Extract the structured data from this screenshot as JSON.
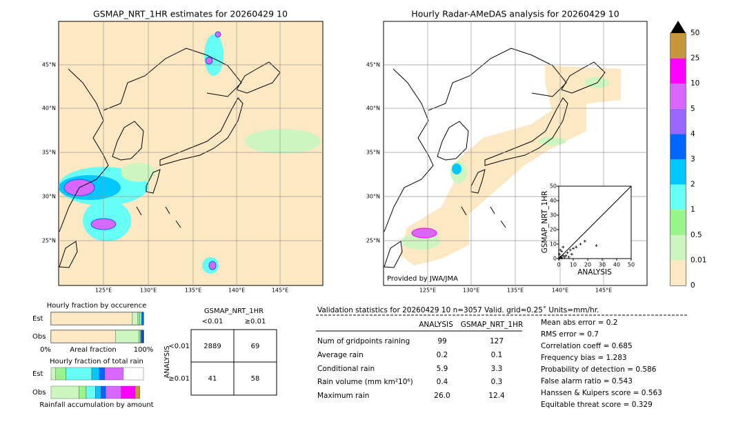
{
  "left_map": {
    "title": "GSMAP_NRT_1HR estimates for 20260429 10",
    "lat_labels": [
      "45°N",
      "40°N",
      "35°N",
      "30°N",
      "25°N"
    ],
    "lon_labels": [
      "125°E",
      "130°E",
      "135°E",
      "140°E",
      "145°E"
    ]
  },
  "right_map": {
    "title": "Hourly Radar-AMeDAS analysis for 20260429 10",
    "lat_labels": [
      "45°N",
      "40°N",
      "35°N",
      "30°N",
      "25°N"
    ],
    "lon_labels": [
      "125°E",
      "130°E",
      "135°E",
      "140°E",
      "145°E"
    ],
    "credit": "Provided by JWA/JMA"
  },
  "scatter": {
    "ylabel": "GSMAP_NRT_1HR",
    "xlabel": "ANALYSIS",
    "ticks": [
      0,
      10,
      20,
      30,
      40,
      50
    ],
    "points": [
      [
        1,
        1
      ],
      [
        2,
        0.5
      ],
      [
        3,
        2
      ],
      [
        0.5,
        3
      ],
      [
        4,
        1
      ],
      [
        6,
        4
      ],
      [
        8,
        6
      ],
      [
        10,
        7
      ],
      [
        12,
        8
      ],
      [
        15,
        10
      ],
      [
        18,
        12
      ],
      [
        26,
        9
      ],
      [
        5,
        2
      ],
      [
        2,
        5
      ],
      [
        7,
        1
      ],
      [
        3,
        8
      ],
      [
        1,
        6
      ],
      [
        9,
        3
      ],
      [
        0.3,
        0.2
      ],
      [
        1.5,
        1.2
      ]
    ]
  },
  "colorbar": {
    "labels": [
      "0",
      "0.01",
      "0.5",
      "1",
      "2",
      "3",
      "4",
      "5",
      "10",
      "25",
      "50"
    ],
    "colors": [
      "#fde8c4",
      "#ccf5c0",
      "#99f58a",
      "#66fff5",
      "#00c8ff",
      "#0064ff",
      "#9966ff",
      "#d966ff",
      "#ff00ff",
      "#c8963c"
    ],
    "over_color": "#000000"
  },
  "occurrence": {
    "title": "Hourly fraction by occurence",
    "rows": [
      "Est",
      "Obs"
    ],
    "axis_left": "0%",
    "axis_mid": "Areal fraction",
    "axis_right": "100%",
    "est": [
      {
        "w": 0.88,
        "c": "#fde8c4"
      },
      {
        "w": 0.06,
        "c": "#ccf5c0"
      },
      {
        "w": 0.02,
        "c": "#99f58a"
      },
      {
        "w": 0.02,
        "c": "#66fff5"
      },
      {
        "w": 0.02,
        "c": "#0064ff"
      }
    ],
    "obs": [
      {
        "w": 0.7,
        "c": "#fde8c4"
      },
      {
        "w": 0.25,
        "c": "#ccf5c0"
      },
      {
        "w": 0.02,
        "c": "#99f58a"
      },
      {
        "w": 0.02,
        "c": "#0064ff"
      },
      {
        "w": 0.01,
        "c": "#000080"
      }
    ]
  },
  "total_rain": {
    "title": "Hourly fraction of total rain",
    "rows": [
      "Est",
      "Obs"
    ],
    "footer": "Rainfall accumulation by amount",
    "est": [
      {
        "w": 0.05,
        "c": "#ccf5c0"
      },
      {
        "w": 0.11,
        "c": "#99f58a"
      },
      {
        "w": 0.28,
        "c": "#66fff5"
      },
      {
        "w": 0.08,
        "c": "#00c8ff"
      },
      {
        "w": 0.06,
        "c": "#0064ff"
      },
      {
        "w": 0.2,
        "c": "#d966ff"
      },
      {
        "w": 0.22,
        "c": "#ffffff"
      }
    ],
    "obs": [
      {
        "w": 0.3,
        "c": "#ccf5c0"
      },
      {
        "w": 0.08,
        "c": "#99f58a"
      },
      {
        "w": 0.1,
        "c": "#66fff5"
      },
      {
        "w": 0.06,
        "c": "#00c8ff"
      },
      {
        "w": 0.05,
        "c": "#0064ff"
      },
      {
        "w": 0.17,
        "c": "#d966ff"
      },
      {
        "w": 0.15,
        "c": "#ff00ff"
      },
      {
        "w": 0.05,
        "c": "#c8963c"
      }
    ]
  },
  "contingency": {
    "title": "GSMAP_NRT_1HR",
    "col_labels": [
      "<0.01",
      "≥0.01"
    ],
    "row_axis": "ANALYSIS",
    "row_labels": [
      "<0.01",
      "≥0.01"
    ],
    "cells": [
      [
        "2889",
        "69"
      ],
      [
        "41",
        "58"
      ]
    ]
  },
  "validation": {
    "header": "Validation statistics for 20260429 10  n=3057 Valid. grid=0.25˚ Units=mm/hr.",
    "columns": [
      "ANALYSIS",
      "GSMAP_NRT_1HR"
    ],
    "rows": [
      [
        "Num of gridpoints raining",
        "99",
        "127"
      ],
      [
        "Average rain",
        "0.2",
        "0.1"
      ],
      [
        "Conditional rain",
        "5.9",
        "3.3"
      ],
      [
        "Rain volume (mm km²10⁶)",
        "0.4",
        "0.3"
      ],
      [
        "Maximum rain",
        "26.0",
        "12.4"
      ]
    ],
    "scores": [
      "Mean abs error =    0.2",
      "RMS error =    0.7",
      "Correlation coeff =  0.685",
      "Frequency bias =  1.283",
      "Probability of detection =  0.586",
      "False alarm ratio =  0.543",
      "Hanssen & Kuipers score =  0.563",
      "Equitable threat score =  0.329"
    ]
  }
}
